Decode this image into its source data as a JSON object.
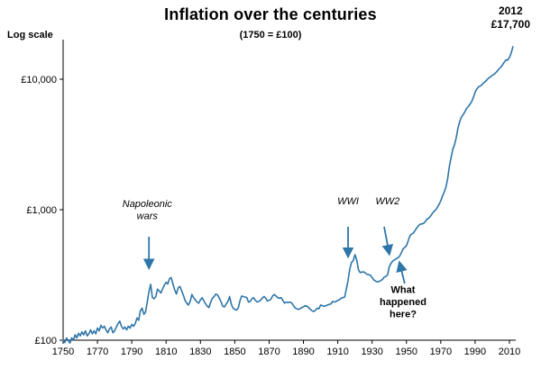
{
  "header": {
    "title": "Inflation over the centuries",
    "subtitle": "(1750 = £100)",
    "log_scale_label": "Log scale",
    "endpoint_year": "2012",
    "endpoint_value": "£17,700"
  },
  "chart_data": {
    "type": "line",
    "title": "Inflation over the centuries",
    "subtitle": "(1750 = £100)",
    "ylabel": "Log scale",
    "y_scale": "log",
    "x_range": [
      1750,
      2012
    ],
    "ylim": [
      100,
      20000
    ],
    "grid": false,
    "legend": "none",
    "line_color": "#2e75a8",
    "x_ticks": [
      1750,
      1770,
      1790,
      1810,
      1830,
      1850,
      1870,
      1890,
      1910,
      1930,
      1950,
      1970,
      1990,
      2010
    ],
    "y_ticks": [
      {
        "value": 100,
        "label": "£100"
      },
      {
        "value": 1000,
        "label": "£1,000"
      },
      {
        "value": 10000,
        "label": "£10,000"
      }
    ],
    "endpoint_label": {
      "year": "2012",
      "value": "£17,700"
    },
    "points": [
      [
        1750,
        100
      ],
      [
        1751,
        96
      ],
      [
        1752,
        104
      ],
      [
        1753,
        99
      ],
      [
        1754,
        95
      ],
      [
        1755,
        104
      ],
      [
        1756,
        100
      ],
      [
        1757,
        110
      ],
      [
        1758,
        104
      ],
      [
        1759,
        113
      ],
      [
        1760,
        108
      ],
      [
        1761,
        116
      ],
      [
        1762,
        110
      ],
      [
        1763,
        118
      ],
      [
        1764,
        108
      ],
      [
        1765,
        112
      ],
      [
        1766,
        120
      ],
      [
        1767,
        112
      ],
      [
        1768,
        118
      ],
      [
        1769,
        112
      ],
      [
        1770,
        124
      ],
      [
        1771,
        118
      ],
      [
        1772,
        130
      ],
      [
        1773,
        124
      ],
      [
        1774,
        128
      ],
      [
        1775,
        120
      ],
      [
        1776,
        114
      ],
      [
        1777,
        122
      ],
      [
        1778,
        126
      ],
      [
        1779,
        114
      ],
      [
        1780,
        118
      ],
      [
        1781,
        126
      ],
      [
        1782,
        134
      ],
      [
        1783,
        140
      ],
      [
        1784,
        128
      ],
      [
        1785,
        122
      ],
      [
        1786,
        126
      ],
      [
        1787,
        120
      ],
      [
        1788,
        128
      ],
      [
        1789,
        124
      ],
      [
        1790,
        132
      ],
      [
        1791,
        128
      ],
      [
        1792,
        134
      ],
      [
        1793,
        148
      ],
      [
        1794,
        142
      ],
      [
        1795,
        168
      ],
      [
        1796,
        176
      ],
      [
        1797,
        158
      ],
      [
        1798,
        164
      ],
      [
        1799,
        196
      ],
      [
        1800,
        236
      ],
      [
        1801,
        268
      ],
      [
        1802,
        212
      ],
      [
        1803,
        208
      ],
      [
        1804,
        216
      ],
      [
        1805,
        246
      ],
      [
        1806,
        238
      ],
      [
        1807,
        230
      ],
      [
        1808,
        248
      ],
      [
        1809,
        264
      ],
      [
        1810,
        278
      ],
      [
        1811,
        270
      ],
      [
        1812,
        296
      ],
      [
        1813,
        302
      ],
      [
        1814,
        270
      ],
      [
        1815,
        242
      ],
      [
        1816,
        226
      ],
      [
        1817,
        252
      ],
      [
        1818,
        258
      ],
      [
        1819,
        240
      ],
      [
        1820,
        222
      ],
      [
        1821,
        202
      ],
      [
        1822,
        192
      ],
      [
        1823,
        186
      ],
      [
        1824,
        198
      ],
      [
        1825,
        224
      ],
      [
        1826,
        212
      ],
      [
        1827,
        204
      ],
      [
        1828,
        196
      ],
      [
        1829,
        192
      ],
      [
        1830,
        204
      ],
      [
        1831,
        212
      ],
      [
        1832,
        200
      ],
      [
        1833,
        190
      ],
      [
        1834,
        182
      ],
      [
        1835,
        178
      ],
      [
        1836,
        196
      ],
      [
        1837,
        210
      ],
      [
        1838,
        216
      ],
      [
        1839,
        226
      ],
      [
        1840,
        222
      ],
      [
        1841,
        210
      ],
      [
        1842,
        196
      ],
      [
        1843,
        182
      ],
      [
        1844,
        180
      ],
      [
        1845,
        190
      ],
      [
        1846,
        198
      ],
      [
        1847,
        216
      ],
      [
        1848,
        188
      ],
      [
        1849,
        176
      ],
      [
        1850,
        172
      ],
      [
        1851,
        170
      ],
      [
        1852,
        176
      ],
      [
        1853,
        200
      ],
      [
        1854,
        218
      ],
      [
        1855,
        216
      ],
      [
        1856,
        214
      ],
      [
        1857,
        212
      ],
      [
        1858,
        196
      ],
      [
        1859,
        198
      ],
      [
        1860,
        208
      ],
      [
        1861,
        212
      ],
      [
        1862,
        202
      ],
      [
        1863,
        196
      ],
      [
        1864,
        198
      ],
      [
        1865,
        202
      ],
      [
        1866,
        210
      ],
      [
        1867,
        216
      ],
      [
        1868,
        210
      ],
      [
        1869,
        200
      ],
      [
        1870,
        202
      ],
      [
        1871,
        206
      ],
      [
        1872,
        218
      ],
      [
        1873,
        224
      ],
      [
        1874,
        218
      ],
      [
        1875,
        212
      ],
      [
        1876,
        210
      ],
      [
        1877,
        212
      ],
      [
        1878,
        202
      ],
      [
        1879,
        192
      ],
      [
        1880,
        196
      ],
      [
        1881,
        194
      ],
      [
        1882,
        196
      ],
      [
        1883,
        194
      ],
      [
        1884,
        186
      ],
      [
        1885,
        178
      ],
      [
        1886,
        174
      ],
      [
        1887,
        172
      ],
      [
        1888,
        174
      ],
      [
        1889,
        178
      ],
      [
        1890,
        180
      ],
      [
        1891,
        184
      ],
      [
        1892,
        182
      ],
      [
        1893,
        178
      ],
      [
        1894,
        172
      ],
      [
        1895,
        168
      ],
      [
        1896,
        166
      ],
      [
        1897,
        170
      ],
      [
        1898,
        176
      ],
      [
        1899,
        174
      ],
      [
        1900,
        186
      ],
      [
        1901,
        184
      ],
      [
        1902,
        182
      ],
      [
        1903,
        184
      ],
      [
        1904,
        186
      ],
      [
        1905,
        188
      ],
      [
        1906,
        190
      ],
      [
        1907,
        198
      ],
      [
        1908,
        196
      ],
      [
        1909,
        198
      ],
      [
        1910,
        202
      ],
      [
        1911,
        204
      ],
      [
        1912,
        210
      ],
      [
        1913,
        212
      ],
      [
        1914,
        214
      ],
      [
        1915,
        246
      ],
      [
        1916,
        286
      ],
      [
        1917,
        350
      ],
      [
        1918,
        394
      ],
      [
        1919,
        408
      ],
      [
        1920,
        452
      ],
      [
        1921,
        412
      ],
      [
        1922,
        348
      ],
      [
        1923,
        330
      ],
      [
        1924,
        332
      ],
      [
        1925,
        334
      ],
      [
        1926,
        328
      ],
      [
        1927,
        320
      ],
      [
        1928,
        318
      ],
      [
        1929,
        314
      ],
      [
        1930,
        302
      ],
      [
        1931,
        290
      ],
      [
        1932,
        284
      ],
      [
        1933,
        280
      ],
      [
        1934,
        282
      ],
      [
        1935,
        286
      ],
      [
        1936,
        292
      ],
      [
        1937,
        304
      ],
      [
        1938,
        308
      ],
      [
        1939,
        316
      ],
      [
        1940,
        364
      ],
      [
        1941,
        388
      ],
      [
        1942,
        404
      ],
      [
        1943,
        412
      ],
      [
        1944,
        420
      ],
      [
        1945,
        428
      ],
      [
        1946,
        440
      ],
      [
        1947,
        468
      ],
      [
        1948,
        500
      ],
      [
        1949,
        514
      ],
      [
        1950,
        530
      ],
      [
        1951,
        578
      ],
      [
        1952,
        630
      ],
      [
        1953,
        650
      ],
      [
        1954,
        662
      ],
      [
        1955,
        692
      ],
      [
        1956,
        726
      ],
      [
        1957,
        752
      ],
      [
        1958,
        774
      ],
      [
        1959,
        778
      ],
      [
        1960,
        786
      ],
      [
        1961,
        812
      ],
      [
        1962,
        846
      ],
      [
        1963,
        862
      ],
      [
        1964,
        890
      ],
      [
        1965,
        932
      ],
      [
        1966,
        968
      ],
      [
        1967,
        994
      ],
      [
        1968,
        1040
      ],
      [
        1969,
        1096
      ],
      [
        1970,
        1166
      ],
      [
        1971,
        1276
      ],
      [
        1972,
        1368
      ],
      [
        1973,
        1494
      ],
      [
        1974,
        1732
      ],
      [
        1975,
        2152
      ],
      [
        1976,
        2508
      ],
      [
        1977,
        2906
      ],
      [
        1978,
        3146
      ],
      [
        1979,
        3568
      ],
      [
        1980,
        4210
      ],
      [
        1981,
        4710
      ],
      [
        1982,
        5116
      ],
      [
        1983,
        5352
      ],
      [
        1984,
        5618
      ],
      [
        1985,
        5958
      ],
      [
        1986,
        6162
      ],
      [
        1987,
        6418
      ],
      [
        1988,
        6732
      ],
      [
        1989,
        7256
      ],
      [
        1990,
        7942
      ],
      [
        1991,
        8408
      ],
      [
        1992,
        8722
      ],
      [
        1993,
        8858
      ],
      [
        1994,
        9074
      ],
      [
        1995,
        9388
      ],
      [
        1996,
        9614
      ],
      [
        1997,
        9916
      ],
      [
        1998,
        10256
      ],
      [
        1999,
        10414
      ],
      [
        2000,
        10700
      ],
      [
        2001,
        10900
      ],
      [
        2002,
        11200
      ],
      [
        2003,
        11600
      ],
      [
        2004,
        12000
      ],
      [
        2005,
        12400
      ],
      [
        2006,
        12900
      ],
      [
        2007,
        13500
      ],
      [
        2008,
        14100
      ],
      [
        2009,
        14000
      ],
      [
        2010,
        14700
      ],
      [
        2011,
        15800
      ],
      [
        2012,
        17700
      ]
    ],
    "annotations": [
      {
        "name": "napoleonic-wars",
        "lines": [
          "Napoleonic",
          "wars"
        ],
        "style": "italic",
        "text_year": 1799,
        "text_value": 1050,
        "arrow": {
          "x1": 1800,
          "v1": 620,
          "x2": 1800,
          "v2": 360
        }
      },
      {
        "name": "wwi",
        "lines": [
          "WWI"
        ],
        "style": "italic",
        "text_year": 1916,
        "text_value": 1100,
        "arrow": {
          "x1": 1916,
          "v1": 740,
          "x2": 1916,
          "v2": 440
        }
      },
      {
        "name": "ww2",
        "lines": [
          "WW2"
        ],
        "style": "italic",
        "text_year": 1939,
        "text_value": 1100,
        "arrow": {
          "x1": 1937,
          "v1": 740,
          "x2": 1940,
          "v2": 460
        }
      },
      {
        "name": "what-happened-here",
        "lines": [
          "What",
          "happened",
          "here?"
        ],
        "style": "bold",
        "text_year": 1948,
        "text_value": 230,
        "arrow": {
          "x1": 1949,
          "v1": 272,
          "x2": 1946,
          "v2": 392
        }
      }
    ]
  }
}
